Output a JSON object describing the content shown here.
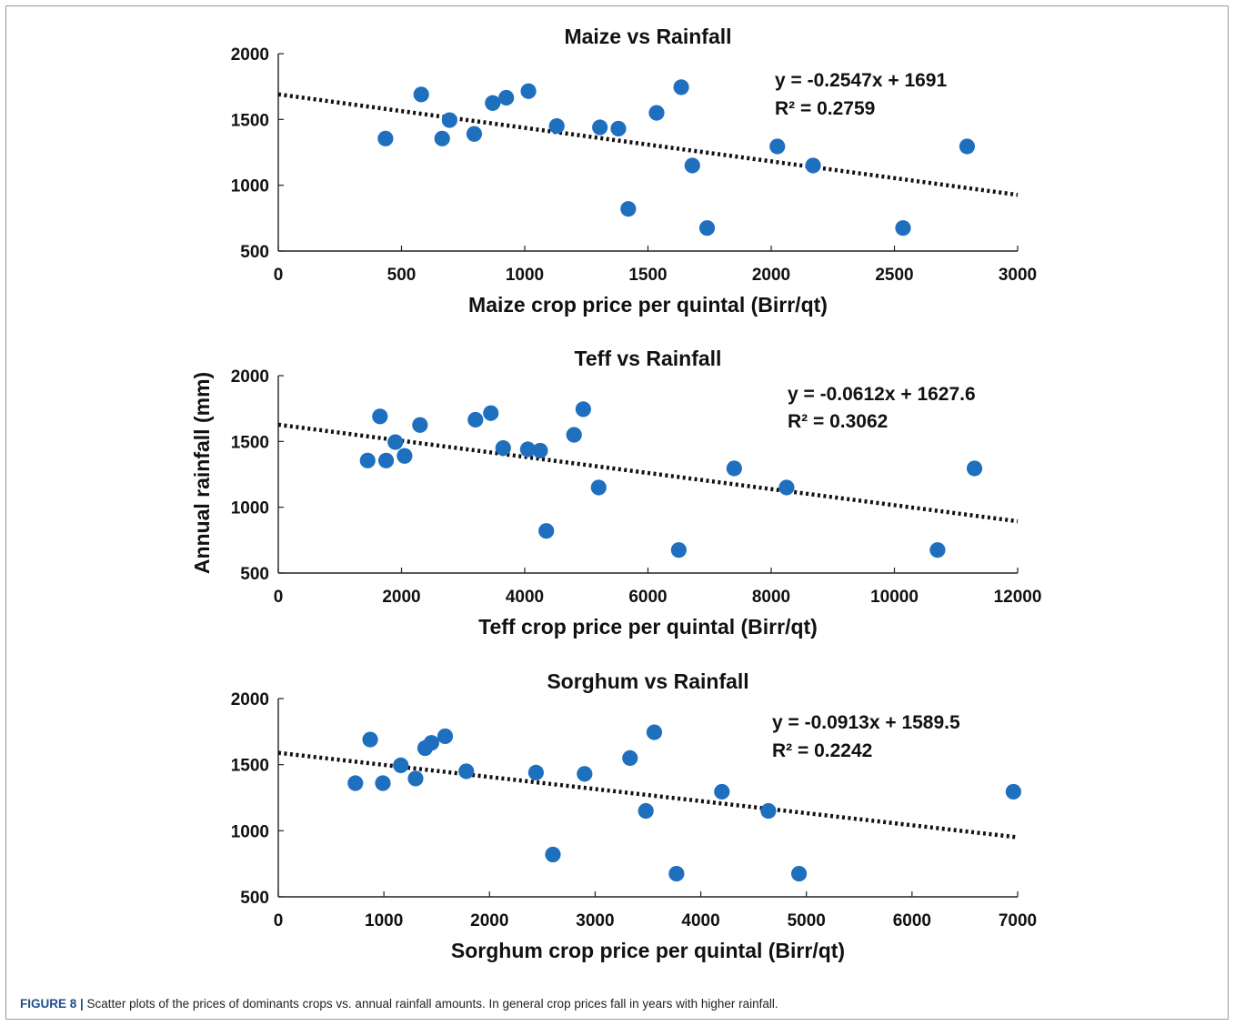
{
  "figure": {
    "caption_label": "FIGURE 8 |",
    "caption_text": " Scatter plots of the prices of dominants crops vs. annual rainfall amounts. In general crop prices fall in years with higher rainfall.",
    "ylabel": "Annual rainfall (mm)",
    "marker_color": "#1f6fbf",
    "trend_color": "#111111"
  },
  "chart_data": [
    {
      "type": "scatter",
      "title": "Maize vs Rainfall",
      "xlabel": "Maize crop price per quintal (Birr/qt)",
      "xlim": [
        0,
        3000
      ],
      "ylim": [
        500,
        2000
      ],
      "xticks": [
        0,
        500,
        1000,
        1500,
        2000,
        2500,
        3000
      ],
      "yticks": [
        500,
        1000,
        1500,
        2000
      ],
      "points": [
        [
          435,
          1355
        ],
        [
          580,
          1690
        ],
        [
          665,
          1355
        ],
        [
          695,
          1495
        ],
        [
          795,
          1390
        ],
        [
          870,
          1625
        ],
        [
          925,
          1665
        ],
        [
          1015,
          1715
        ],
        [
          1130,
          1450
        ],
        [
          1305,
          1440
        ],
        [
          1380,
          1430
        ],
        [
          1420,
          820
        ],
        [
          1535,
          1550
        ],
        [
          1635,
          1745
        ],
        [
          1680,
          1150
        ],
        [
          1740,
          675
        ],
        [
          2025,
          1295
        ],
        [
          2170,
          1150
        ],
        [
          2535,
          675
        ],
        [
          2795,
          1295
        ]
      ],
      "trendline": {
        "slope": -0.2547,
        "intercept": 1691
      },
      "equation": "y = -0.2547x + 1691",
      "r2": "R² = 0.2759"
    },
    {
      "type": "scatter",
      "title": "Teff vs Rainfall",
      "xlabel": "Teff crop price per quintal (Birr/qt)",
      "xlim": [
        0,
        12000
      ],
      "ylim": [
        500,
        2000
      ],
      "xticks": [
        0,
        2000,
        4000,
        6000,
        8000,
        10000,
        12000
      ],
      "yticks": [
        500,
        1000,
        1500,
        2000
      ],
      "points": [
        [
          1450,
          1355
        ],
        [
          1650,
          1690
        ],
        [
          1750,
          1355
        ],
        [
          1900,
          1495
        ],
        [
          2050,
          1390
        ],
        [
          2300,
          1625
        ],
        [
          3200,
          1665
        ],
        [
          3450,
          1715
        ],
        [
          3650,
          1450
        ],
        [
          4050,
          1440
        ],
        [
          4250,
          1430
        ],
        [
          4350,
          820
        ],
        [
          4800,
          1550
        ],
        [
          4950,
          1745
        ],
        [
          5200,
          1150
        ],
        [
          6500,
          675
        ],
        [
          7400,
          1295
        ],
        [
          8250,
          1150
        ],
        [
          10700,
          675
        ],
        [
          11300,
          1295
        ]
      ],
      "trendline": {
        "slope": -0.0612,
        "intercept": 1627.6
      },
      "equation": "y = -0.0612x + 1627.6",
      "r2": "R² = 0.3062"
    },
    {
      "type": "scatter",
      "title": "Sorghum vs Rainfall",
      "xlabel": "Sorghum crop price per quintal (Birr/qt)",
      "xlim": [
        0,
        7000
      ],
      "ylim": [
        500,
        2000
      ],
      "xticks": [
        0,
        1000,
        2000,
        3000,
        4000,
        5000,
        6000,
        7000
      ],
      "yticks": [
        500,
        1000,
        1500,
        2000
      ],
      "points": [
        [
          730,
          1360
        ],
        [
          870,
          1690
        ],
        [
          990,
          1360
        ],
        [
          1160,
          1495
        ],
        [
          1300,
          1395
        ],
        [
          1390,
          1625
        ],
        [
          1450,
          1665
        ],
        [
          1580,
          1715
        ],
        [
          1780,
          1450
        ],
        [
          2440,
          1440
        ],
        [
          2600,
          820
        ],
        [
          2900,
          1430
        ],
        [
          3330,
          1550
        ],
        [
          3480,
          1150
        ],
        [
          3560,
          1745
        ],
        [
          3770,
          675
        ],
        [
          4200,
          1295
        ],
        [
          4640,
          1150
        ],
        [
          4930,
          675
        ],
        [
          6960,
          1295
        ]
      ],
      "trendline": {
        "slope": -0.0913,
        "intercept": 1589.5
      },
      "equation": "y = -0.0913x + 1589.5",
      "r2": "R² = 0.2242"
    }
  ]
}
